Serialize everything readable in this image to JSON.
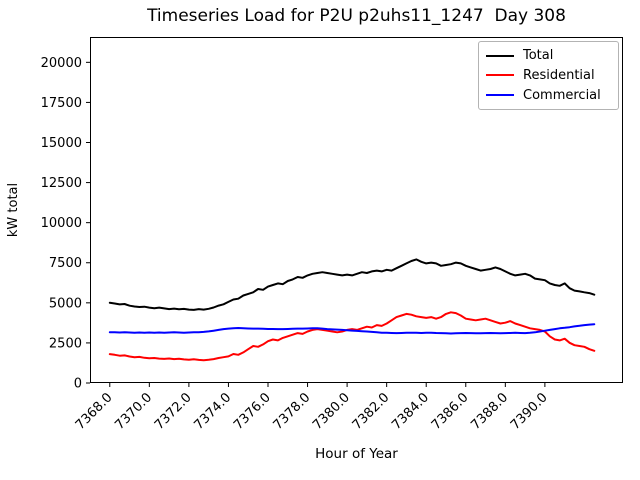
{
  "title": "Timeseries Load for P2U p2uhs11_1247  Day 308",
  "chart_data": {
    "type": "line",
    "title": "Timeseries Load for P2U p2uhs11_1247  Day 308",
    "xlabel": "Hour of Year",
    "ylabel": "kW total",
    "grid": false,
    "legend_position": "upper right",
    "xlim": [
      7367.0,
      7393.95
    ],
    "ylim": [
      0,
      21580
    ],
    "xticks": [
      7368,
      7370,
      7372,
      7374,
      7376,
      7378,
      7380,
      7382,
      7384,
      7386,
      7388,
      7390
    ],
    "xtick_labels": [
      "7368.0",
      "7370.0",
      "7372.0",
      "7374.0",
      "7376.0",
      "7378.0",
      "7380.0",
      "7382.0",
      "7384.0",
      "7386.0",
      "7388.0",
      "7390.0"
    ],
    "yticks": [
      0,
      2500,
      5000,
      7500,
      10000,
      12500,
      15000,
      17500,
      20000
    ],
    "x": [
      7368.0,
      7368.25,
      7368.5,
      7368.75,
      7369.0,
      7369.25,
      7369.5,
      7369.75,
      7370.0,
      7370.25,
      7370.5,
      7370.75,
      7371.0,
      7371.25,
      7371.5,
      7371.75,
      7372.0,
      7372.25,
      7372.5,
      7372.75,
      7373.0,
      7373.25,
      7373.5,
      7373.75,
      7374.0,
      7374.25,
      7374.5,
      7374.75,
      7375.0,
      7375.25,
      7375.5,
      7375.75,
      7376.0,
      7376.25,
      7376.5,
      7376.75,
      7377.0,
      7377.25,
      7377.5,
      7377.75,
      7378.0,
      7378.25,
      7378.5,
      7378.75,
      7379.0,
      7379.25,
      7379.5,
      7379.75,
      7380.0,
      7380.25,
      7380.5,
      7380.75,
      7381.0,
      7381.25,
      7381.5,
      7381.75,
      7382.0,
      7382.25,
      7382.5,
      7382.75,
      7383.0,
      7383.25,
      7383.5,
      7383.75,
      7384.0,
      7384.25,
      7384.5,
      7384.75,
      7385.0,
      7385.25,
      7385.5,
      7385.75,
      7386.0,
      7386.25,
      7386.5,
      7386.75,
      7387.0,
      7387.25,
      7387.5,
      7387.75,
      7388.0,
      7388.25,
      7388.5,
      7388.75,
      7389.0,
      7389.25,
      7389.5,
      7389.75,
      7390.0,
      7390.25,
      7390.5,
      7390.75,
      7391.0,
      7391.25,
      7391.5,
      7391.75,
      7392.0,
      7392.25,
      7392.5
    ],
    "series": [
      {
        "name": "Total",
        "color": "#000000",
        "values": [
          5000,
          4960,
          4900,
          4930,
          4820,
          4770,
          4740,
          4760,
          4700,
          4660,
          4700,
          4650,
          4610,
          4640,
          4600,
          4620,
          4580,
          4560,
          4610,
          4580,
          4630,
          4710,
          4830,
          4910,
          5060,
          5210,
          5260,
          5460,
          5560,
          5660,
          5860,
          5810,
          6010,
          6110,
          6210,
          6160,
          6360,
          6460,
          6610,
          6560,
          6710,
          6810,
          6860,
          6910,
          6860,
          6810,
          6760,
          6710,
          6760,
          6710,
          6810,
          6910,
          6860,
          6960,
          7010,
          6960,
          7060,
          7010,
          7160,
          7310,
          7460,
          7610,
          7710,
          7560,
          7460,
          7510,
          7460,
          7310,
          7360,
          7410,
          7510,
          7460,
          7310,
          7210,
          7110,
          7010,
          7060,
          7110,
          7210,
          7110,
          6960,
          6810,
          6710,
          6760,
          6810,
          6710,
          6510,
          6460,
          6410,
          6210,
          6110,
          6060,
          6210,
          5910,
          5760,
          5710,
          5660,
          5610,
          5510
        ]
      },
      {
        "name": "Residential",
        "color": "#ff0000",
        "values": [
          1800,
          1760,
          1700,
          1720,
          1650,
          1610,
          1630,
          1570,
          1540,
          1560,
          1520,
          1500,
          1530,
          1490,
          1510,
          1470,
          1450,
          1480,
          1440,
          1420,
          1450,
          1490,
          1560,
          1610,
          1660,
          1810,
          1760,
          1910,
          2110,
          2310,
          2260,
          2410,
          2610,
          2710,
          2660,
          2810,
          2910,
          3010,
          3110,
          3060,
          3210,
          3310,
          3360,
          3310,
          3260,
          3210,
          3160,
          3210,
          3310,
          3360,
          3310,
          3410,
          3510,
          3460,
          3610,
          3560,
          3710,
          3910,
          4110,
          4210,
          4310,
          4260,
          4160,
          4110,
          4060,
          4110,
          4010,
          4110,
          4310,
          4410,
          4360,
          4210,
          4010,
          3960,
          3910,
          3960,
          4010,
          3910,
          3810,
          3710,
          3760,
          3860,
          3710,
          3610,
          3510,
          3410,
          3360,
          3310,
          3210,
          2910,
          2710,
          2660,
          2760,
          2510,
          2360,
          2310,
          2260,
          2110,
          2010
        ]
      },
      {
        "name": "Commercial",
        "color": "#0000ff",
        "values": [
          3170,
          3160,
          3150,
          3160,
          3150,
          3140,
          3150,
          3140,
          3150,
          3140,
          3150,
          3140,
          3150,
          3160,
          3150,
          3140,
          3150,
          3160,
          3170,
          3190,
          3220,
          3260,
          3310,
          3360,
          3390,
          3410,
          3430,
          3410,
          3400,
          3390,
          3390,
          3380,
          3370,
          3370,
          3360,
          3360,
          3370,
          3380,
          3390,
          3390,
          3400,
          3410,
          3410,
          3390,
          3360,
          3340,
          3330,
          3310,
          3290,
          3270,
          3250,
          3230,
          3210,
          3190,
          3160,
          3140,
          3130,
          3120,
          3110,
          3120,
          3130,
          3140,
          3130,
          3120,
          3130,
          3140,
          3120,
          3110,
          3100,
          3090,
          3100,
          3110,
          3120,
          3110,
          3100,
          3100,
          3110,
          3120,
          3110,
          3100,
          3110,
          3120,
          3130,
          3120,
          3110,
          3130,
          3160,
          3210,
          3260,
          3310,
          3360,
          3410,
          3440,
          3480,
          3530,
          3570,
          3610,
          3640,
          3670
        ]
      }
    ]
  }
}
